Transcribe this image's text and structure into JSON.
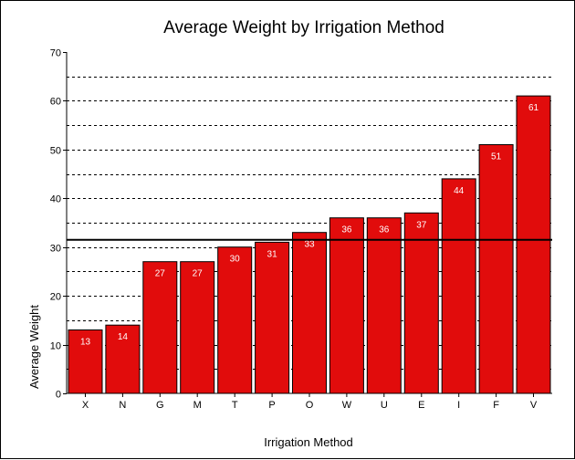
{
  "chart_data": {
    "type": "bar",
    "title": "Average Weight by Irrigation Method",
    "xlabel": "Irrigation Method",
    "ylabel": "Average Weight",
    "categories": [
      "X",
      "N",
      "G",
      "M",
      "T",
      "P",
      "O",
      "W",
      "U",
      "E",
      "I",
      "F",
      "V"
    ],
    "values": [
      13,
      14,
      27,
      27,
      30,
      31,
      33,
      36,
      36,
      37,
      44,
      51,
      61
    ],
    "data_labels": [
      "13",
      "14",
      "27",
      "27",
      "30",
      "31",
      "33",
      "36",
      "36",
      "37",
      "44",
      "51",
      "61"
    ],
    "ylim": [
      0,
      70
    ],
    "yticks": [
      0,
      10,
      20,
      30,
      40,
      50,
      60,
      70
    ],
    "gridlines": [
      5,
      10,
      15,
      20,
      25,
      30,
      35,
      40,
      45,
      50,
      55,
      60,
      65
    ],
    "grid": true,
    "reference_line": 31.5,
    "legend": false,
    "colors": {
      "bar_fill": "#e10c0c",
      "bar_stroke": "#000000",
      "label_text": "#ffffff",
      "grid": "#000000",
      "reference_line": "#000000"
    }
  }
}
